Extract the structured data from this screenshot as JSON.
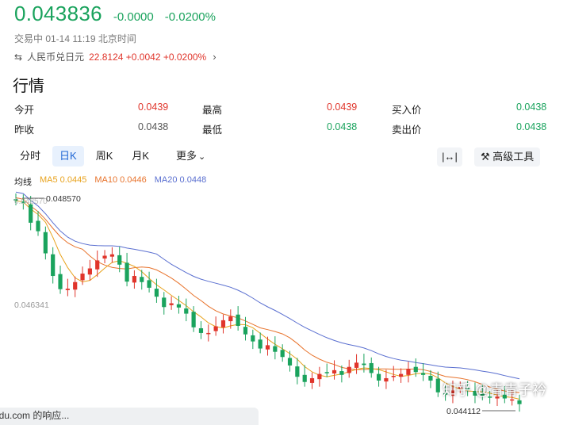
{
  "header": {
    "price": "0.043836",
    "change": "-0.0000",
    "change_pct": "-0.0200%",
    "status": "交易中 01-14 11:19 北京时间",
    "cross_icon": "swap-icon",
    "cross_label": "人民币兑日元",
    "cross_value": "22.8124 +0.0042 +0.0200%"
  },
  "section_title": "行情",
  "stats": [
    {
      "label": "今开",
      "value": "0.0439",
      "color": "#e0352b"
    },
    {
      "label": "最高",
      "value": "0.0439",
      "color": "#e0352b"
    },
    {
      "label": "买入价",
      "value": "0.0438",
      "color": "#1aa35d"
    },
    {
      "label": "昨收",
      "value": "0.0438",
      "color": "#555555"
    },
    {
      "label": "最低",
      "value": "0.0438",
      "color": "#1aa35d"
    },
    {
      "label": "卖出价",
      "value": "0.0438",
      "color": "#1aa35d"
    }
  ],
  "tabs": [
    "分时",
    "日K",
    "周K",
    "月K",
    "更多"
  ],
  "active_tab": "日K",
  "tools": {
    "fit_icon": "fit-width-icon",
    "advanced": "高级工具",
    "advanced_icon": "tool-icon"
  },
  "ma_legend": {
    "label": "均线",
    "ma5": "MA5 0.0445",
    "ma10": "MA10 0.0446",
    "ma20": "MA20 0.0448"
  },
  "chart_data": {
    "type": "candlestick",
    "y_max_label": "0.048570",
    "y_max_ghost": "0.048570",
    "y_mid_label": "0.046341",
    "y_min_label": "0.044112",
    "ylim": [
      0.04411,
      0.04857
    ],
    "up_color": "#e0352b",
    "down_color": "#1aa35d",
    "ma_colors": {
      "ma5": "#e8a21c",
      "ma10": "#e8732c",
      "ma20": "#5a6fd0"
    },
    "closes": [
      0.04852,
      0.04846,
      0.04805,
      0.04787,
      0.0474,
      0.04692,
      0.04664,
      0.04665,
      0.04679,
      0.04697,
      0.04708,
      0.04725,
      0.04735,
      0.04738,
      0.04716,
      0.0468,
      0.04692,
      0.04679,
      0.04667,
      0.04648,
      0.04626,
      0.04634,
      0.04625,
      0.04612,
      0.04583,
      0.04571,
      0.04571,
      0.04585,
      0.04598,
      0.04606,
      0.04586,
      0.04568,
      0.04553,
      0.04538,
      0.04545,
      0.04531,
      0.0452,
      0.04502,
      0.04478,
      0.04467,
      0.04475,
      0.04484,
      0.04487,
      0.04492,
      0.04482,
      0.04499,
      0.04508,
      0.04503,
      0.04486,
      0.0447,
      0.04475,
      0.0448,
      0.04484,
      0.04495,
      0.04488,
      0.04482,
      0.0447,
      0.04445,
      0.0444,
      0.04449,
      0.04456,
      0.0445,
      0.04438,
      0.04438,
      0.04434,
      0.04436,
      0.04432,
      0.0443,
      0.0442
    ]
  },
  "watermark": "知乎 @青青子衿",
  "toast": "idu.com 的响应..."
}
